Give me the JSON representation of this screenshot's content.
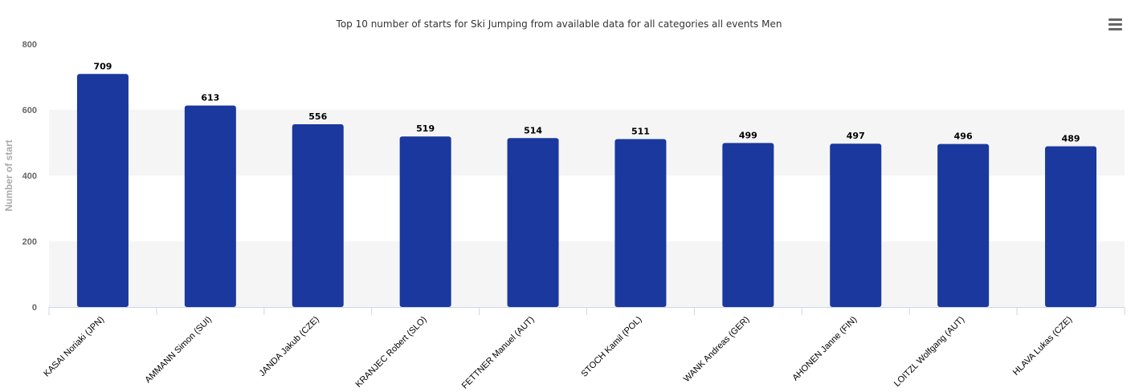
{
  "chart_data": {
    "type": "bar",
    "title": "Top 10 number of starts for Ski Jumping from available data for all categories all events Men",
    "xlabel": "",
    "ylabel": "Number of start",
    "ylim": [
      0,
      800
    ],
    "yticks": [
      0,
      200,
      400,
      600,
      800
    ],
    "categories": [
      "KASAI Noriaki (JPN)",
      "AMMANN Simon (SUI)",
      "JANDA Jakub (CZE)",
      "KRANJEC Robert (SLO)",
      "FETTNER Manuel (AUT)",
      "STOCH Kamil (POL)",
      "WANK Andreas (GER)",
      "AHONEN Janne (FIN)",
      "LOITZL Wolfgang (AUT)",
      "HLAVA Lukas (CZE)"
    ],
    "values": [
      709,
      613,
      556,
      519,
      514,
      511,
      499,
      497,
      496,
      489
    ],
    "bar_color": "#1a389e",
    "band_color": "#f5f5f5",
    "grid": false,
    "data_labels": true
  },
  "menu": {
    "icon": "hamburger-menu-icon"
  }
}
